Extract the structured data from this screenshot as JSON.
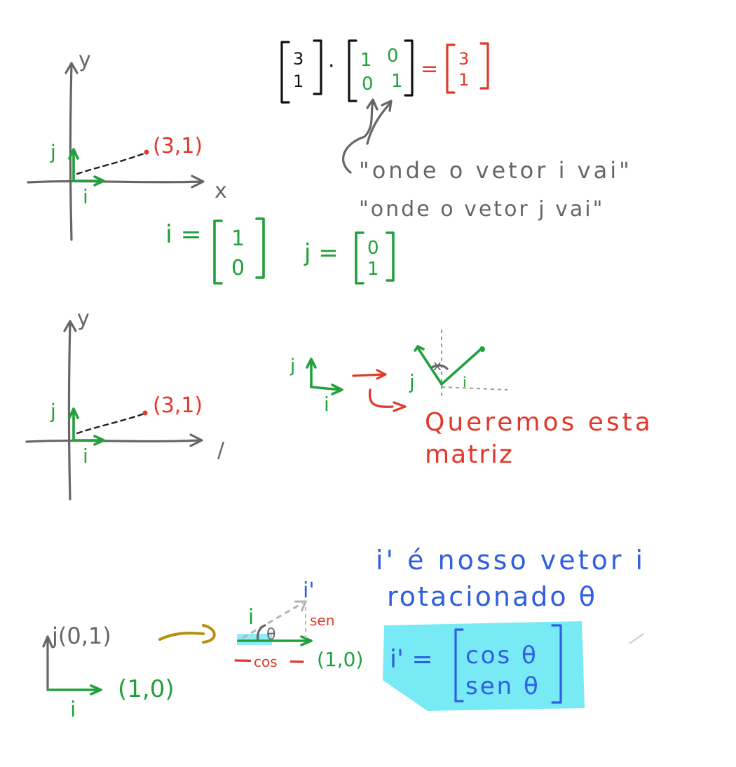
{
  "section1": {
    "y_axis_label": "y",
    "x_axis_label": "x",
    "j_label": "j",
    "i_label": "i",
    "point_label": "(3,1)",
    "i_vec_lhs": "i =",
    "i_vec_top": "1",
    "i_vec_bottom": "0",
    "j_vec_lhs": "j =",
    "j_vec_top": "0",
    "j_vec_bottom": "1"
  },
  "equation": {
    "left_top": "3",
    "left_bottom": "1",
    "dot": "·",
    "m11": "1",
    "m12": "0",
    "m21": "0",
    "m22": "1",
    "equals": "=",
    "right_top": "3",
    "right_bottom": "1",
    "note_line1": "\"onde o vetor i vai\"",
    "note_line2": "\"onde o vetor j vai\""
  },
  "section2": {
    "y_axis_label": "y",
    "j_label": "j",
    "i_label": "i",
    "point_label": "(3,1)",
    "x_axis_mark": "/",
    "small_j": "j",
    "small_i": "i",
    "rot_j": "j",
    "rot_i": "i",
    "rot_x": "x",
    "caption_line1": "Queremos esta",
    "caption_line2": "matriz"
  },
  "section3": {
    "j_point_label": "j(0,1)",
    "i_label": "i",
    "i_point_label": "(1,0)",
    "tri_i": "i",
    "tri_i_prime": "i'",
    "theta": "θ",
    "sen_label": "sen",
    "cos_label": "cos",
    "tri_point": "(1,0)",
    "blue_line1": "i' é nosso vetor i",
    "blue_line2": "rotacionado θ",
    "vec_lhs": "i' =",
    "vec_top": "cos θ",
    "vec_bottom": "sen θ"
  },
  "colors": {
    "gray": "#666666",
    "green": "#22a03c",
    "red": "#e0392b",
    "blue": "#2f5fe0",
    "cyan_highlight": "#5fe6f5",
    "gold": "#b8900e"
  }
}
